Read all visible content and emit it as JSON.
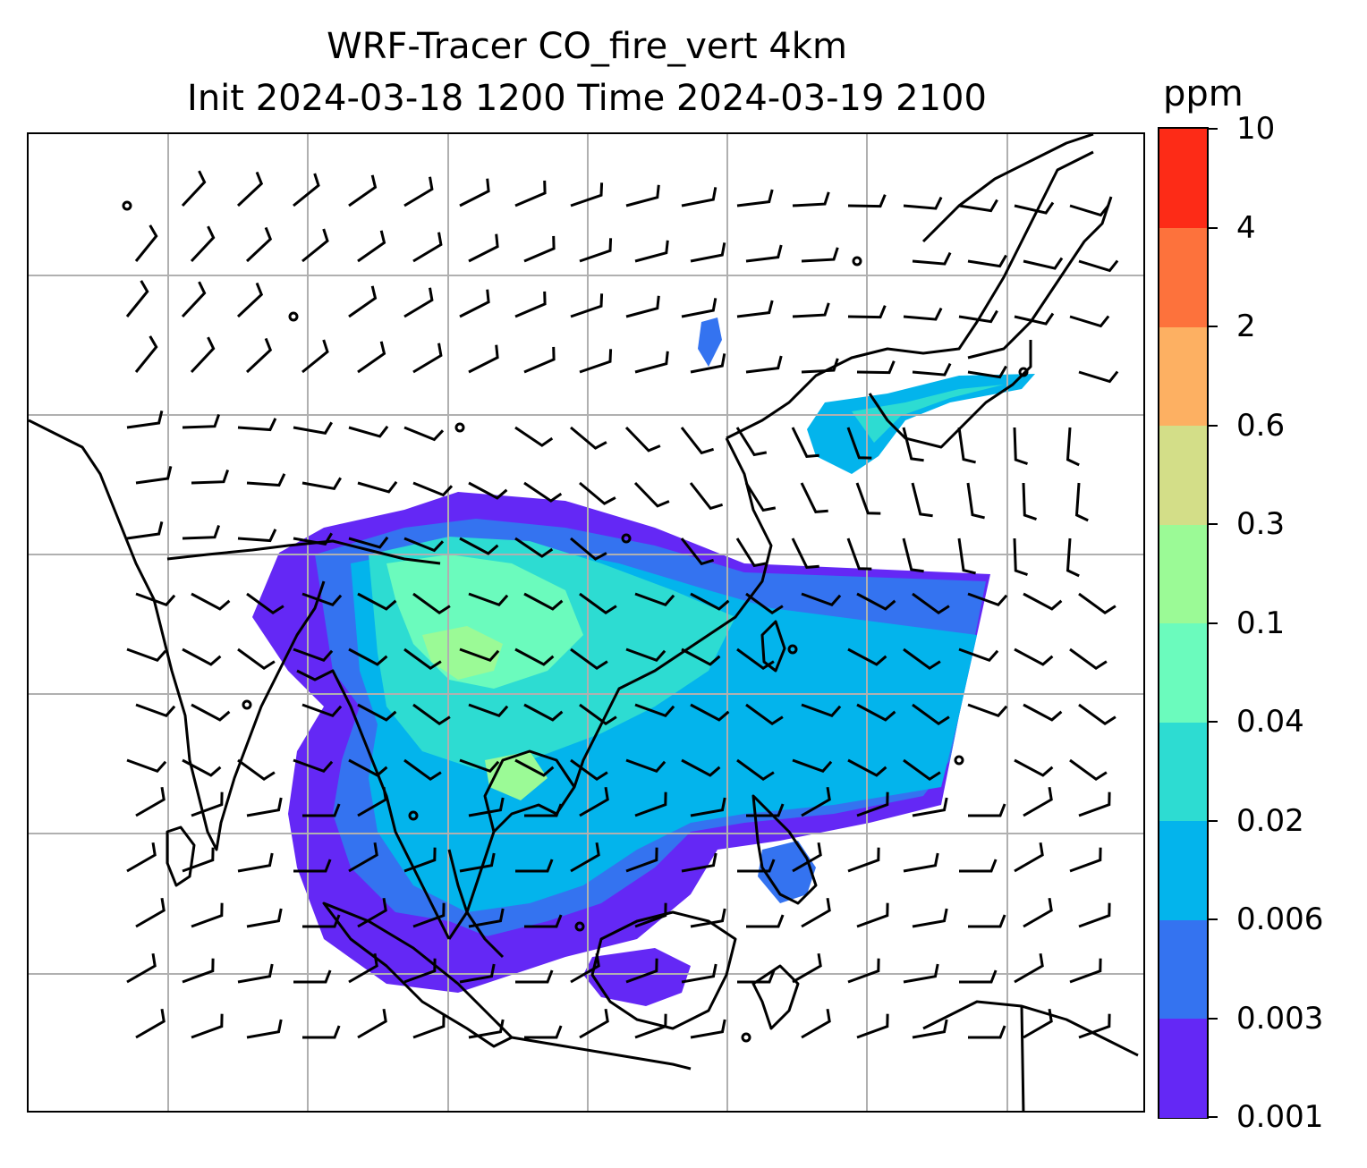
{
  "title": {
    "line1": "WRF-Tracer CO_fire_vert 4km",
    "line2": "Init 2024-03-18 1200 Time 2024-03-19 2100"
  },
  "colorbar": {
    "unit": "ppm",
    "levels": [
      "0.001",
      "0.003",
      "0.006",
      "0.02",
      "0.04",
      "0.1",
      "0.3",
      "0.6",
      "2",
      "4",
      "10"
    ],
    "colors": [
      "#6428f5",
      "#3473f0",
      "#03b4ec",
      "#2ddcd2",
      "#6bfbbd",
      "#9bfa96",
      "#d3de88",
      "#fdb062",
      "#fd723c",
      "#fd2b17"
    ]
  },
  "map": {
    "gridlines": true,
    "grid_color": "#b0b0b0",
    "coastline_color": "#000000",
    "field_name": "CO_fire_vert",
    "barb_color": "#000000"
  }
}
